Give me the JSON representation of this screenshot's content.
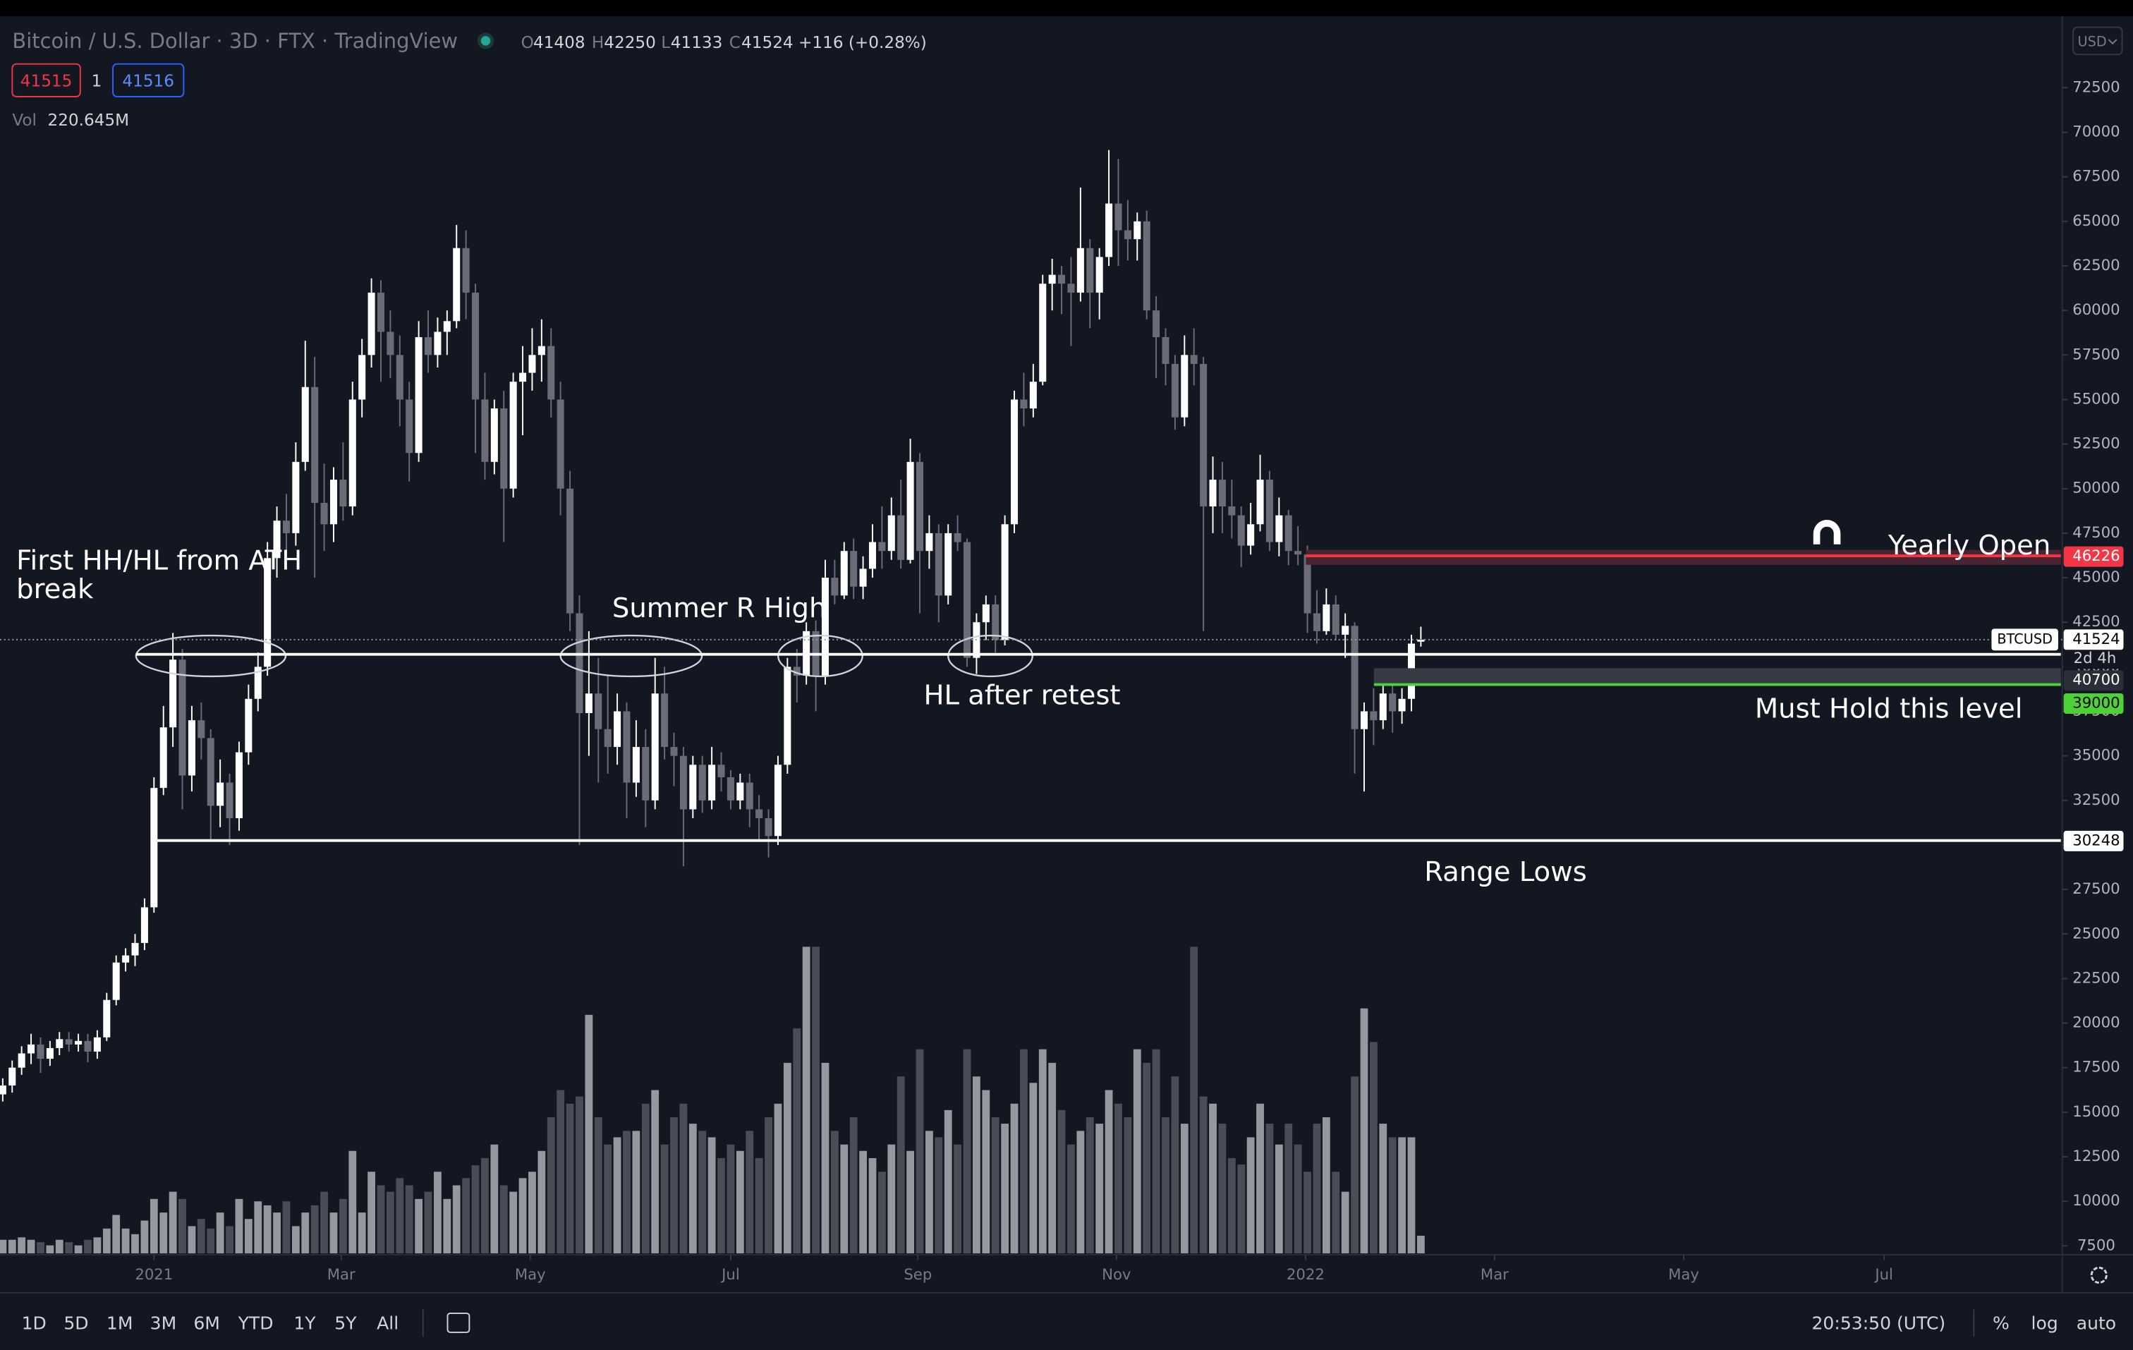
{
  "chart_data": {
    "type": "candlestick",
    "categories": [
      null,
      null,
      null,
      null,
      null,
      null,
      null,
      null,
      null,
      null,
      null,
      null,
      null,
      null,
      null,
      null,
      null,
      null,
      null,
      null,
      null,
      null,
      null,
      null,
      null,
      null,
      null,
      null,
      null,
      null,
      null,
      null,
      null,
      null,
      null,
      null,
      null,
      null,
      null,
      null,
      null,
      null,
      null,
      null,
      null,
      null,
      null,
      null,
      null,
      null,
      null,
      null,
      null,
      null,
      null,
      null,
      null,
      null,
      null,
      null,
      null,
      null,
      null,
      null,
      null,
      null,
      null,
      null,
      null,
      null,
      null,
      null,
      null,
      null,
      null,
      null,
      null,
      null,
      null,
      null,
      null,
      null,
      null,
      null,
      null,
      null,
      null,
      null,
      null,
      null,
      null,
      null,
      null,
      null,
      null,
      null,
      null,
      null,
      null,
      null,
      null,
      null,
      null,
      null,
      null,
      null,
      null,
      null,
      null,
      null,
      null,
      null,
      null,
      null,
      null,
      null,
      null,
      null,
      null,
      null,
      null,
      null,
      null,
      null,
      null,
      null,
      null,
      null,
      null,
      null,
      null,
      null,
      null,
      null,
      null,
      null,
      null,
      null,
      null,
      null,
      null,
      null,
      null,
      null,
      null,
      null,
      null,
      null,
      null,
      null,
      null
    ],
    "candles": [
      [
        16000,
        16900,
        15600,
        16500
      ],
      [
        16500,
        17900,
        16100,
        17500
      ],
      [
        17500,
        18700,
        17100,
        18300
      ],
      [
        18300,
        19400,
        17700,
        18800
      ],
      [
        18800,
        19200,
        17200,
        18000
      ],
      [
        18000,
        19000,
        17600,
        18600
      ],
      [
        18600,
        19500,
        18200,
        19100
      ],
      [
        19100,
        19500,
        18400,
        18800
      ],
      [
        18800,
        19400,
        18400,
        19000
      ],
      [
        19000,
        19400,
        17800,
        18400
      ],
      [
        18400,
        19600,
        18000,
        19200
      ],
      [
        19200,
        21700,
        19000,
        21300
      ],
      [
        21300,
        23800,
        21000,
        23400
      ],
      [
        23400,
        24200,
        22900,
        23800
      ],
      [
        23800,
        25000,
        23200,
        24500
      ],
      [
        24500,
        27000,
        24100,
        26500
      ],
      [
        26500,
        33800,
        26200,
        33200
      ],
      [
        33200,
        37800,
        32800,
        36600
      ],
      [
        36600,
        41900,
        35500,
        40400
      ],
      [
        40400,
        41000,
        32000,
        33900
      ],
      [
        33900,
        37800,
        33000,
        37000
      ],
      [
        37000,
        38000,
        34800,
        36000
      ],
      [
        36000,
        36500,
        30200,
        32200
      ],
      [
        32200,
        34800,
        31000,
        33500
      ],
      [
        33500,
        34000,
        30000,
        31500
      ],
      [
        31500,
        35800,
        30800,
        35200
      ],
      [
        35200,
        39000,
        34500,
        38200
      ],
      [
        38200,
        40800,
        37500,
        40000
      ],
      [
        40000,
        47000,
        39500,
        46100
      ],
      [
        46100,
        49000,
        45000,
        48200
      ],
      [
        48200,
        49700,
        46300,
        47500
      ],
      [
        47500,
        52600,
        46800,
        51500
      ],
      [
        51500,
        58300,
        51000,
        55700
      ],
      [
        55700,
        57400,
        45000,
        49200
      ],
      [
        49200,
        51400,
        46500,
        48000
      ],
      [
        48000,
        51200,
        47000,
        50500
      ],
      [
        50500,
        52600,
        48200,
        49000
      ],
      [
        49000,
        56000,
        48500,
        55000
      ],
      [
        55000,
        58400,
        54000,
        57500
      ],
      [
        57500,
        61800,
        56800,
        61000
      ],
      [
        61000,
        61700,
        56000,
        58800
      ],
      [
        58800,
        60000,
        56200,
        57500
      ],
      [
        57500,
        58600,
        53500,
        55000
      ],
      [
        55000,
        56000,
        50400,
        52000
      ],
      [
        52000,
        59400,
        51500,
        58500
      ],
      [
        58500,
        60000,
        56500,
        57500
      ],
      [
        57500,
        59600,
        56800,
        58800
      ],
      [
        58800,
        60000,
        57500,
        59400
      ],
      [
        59400,
        64800,
        59000,
        63500
      ],
      [
        63500,
        64500,
        59500,
        61000
      ],
      [
        61000,
        61500,
        52000,
        55000
      ],
      [
        55000,
        56500,
        50500,
        51500
      ],
      [
        51500,
        55000,
        50800,
        54500
      ],
      [
        54500,
        55500,
        47000,
        50000
      ],
      [
        50000,
        56500,
        49500,
        56000
      ],
      [
        56000,
        58000,
        53000,
        56500
      ],
      [
        56500,
        59000,
        55500,
        57500
      ],
      [
        57500,
        59500,
        56000,
        58000
      ],
      [
        58000,
        59000,
        54000,
        55000
      ],
      [
        55000,
        56000,
        48500,
        50000
      ],
      [
        50000,
        51000,
        42000,
        43000
      ],
      [
        43000,
        44000,
        30000,
        37400
      ],
      [
        37400,
        42000,
        35000,
        38500
      ],
      [
        38500,
        40500,
        33500,
        36500
      ],
      [
        36500,
        39500,
        34000,
        35500
      ],
      [
        35500,
        38500,
        34500,
        37500
      ],
      [
        37500,
        38000,
        31500,
        33500
      ],
      [
        33500,
        37000,
        32700,
        35500
      ],
      [
        35500,
        36500,
        31000,
        32500
      ],
      [
        32500,
        40500,
        32000,
        38500
      ],
      [
        38500,
        40000,
        34800,
        35500
      ],
      [
        35500,
        36300,
        33300,
        35000
      ],
      [
        35000,
        35500,
        28800,
        32000
      ],
      [
        32000,
        35000,
        31500,
        34500
      ],
      [
        34500,
        35000,
        31800,
        32500
      ],
      [
        32500,
        35500,
        32000,
        34500
      ],
      [
        34500,
        35200,
        33000,
        33800
      ],
      [
        33800,
        34200,
        32000,
        32500
      ],
      [
        32500,
        34000,
        32000,
        33500
      ],
      [
        33500,
        34000,
        31000,
        32000
      ],
      [
        32000,
        32800,
        30200,
        31500
      ],
      [
        31500,
        32000,
        29300,
        30500
      ],
      [
        30500,
        35000,
        30000,
        34500
      ],
      [
        34500,
        40500,
        34000,
        40000
      ],
      [
        40000,
        41000,
        38000,
        39500
      ],
      [
        39500,
        42500,
        39000,
        42000
      ],
      [
        42000,
        42600,
        37500,
        39500
      ],
      [
        39500,
        46000,
        39000,
        45000
      ],
      [
        45000,
        46000,
        43500,
        44000
      ],
      [
        44000,
        47000,
        43800,
        46500
      ],
      [
        46500,
        47200,
        43800,
        44500
      ],
      [
        44500,
        46200,
        43800,
        45500
      ],
      [
        45500,
        48000,
        45000,
        47000
      ],
      [
        47000,
        49000,
        45500,
        46500
      ],
      [
        46500,
        49500,
        46000,
        48500
      ],
      [
        48500,
        50500,
        45500,
        46000
      ],
      [
        46000,
        52800,
        45800,
        51500
      ],
      [
        51500,
        52000,
        43000,
        46500
      ],
      [
        46500,
        48500,
        45500,
        47500
      ],
      [
        47500,
        48000,
        42500,
        44000
      ],
      [
        44000,
        48000,
        43500,
        47500
      ],
      [
        47500,
        48500,
        46500,
        47000
      ],
      [
        47000,
        47200,
        40000,
        40500
      ],
      [
        40500,
        43000,
        39600,
        42500
      ],
      [
        42500,
        44000,
        41500,
        43500
      ],
      [
        43500,
        44000,
        40800,
        41500
      ],
      [
        41500,
        48500,
        41200,
        48000
      ],
      [
        48000,
        55500,
        47500,
        55000
      ],
      [
        55000,
        56500,
        53500,
        54500
      ],
      [
        54500,
        57000,
        54000,
        56000
      ],
      [
        56000,
        62000,
        55800,
        61500
      ],
      [
        61500,
        62900,
        60000,
        62000
      ],
      [
        62000,
        62500,
        59800,
        61500
      ],
      [
        61500,
        63000,
        58000,
        61000
      ],
      [
        61000,
        66900,
        60500,
        63500
      ],
      [
        63500,
        64000,
        59000,
        61000
      ],
      [
        61000,
        63500,
        59500,
        63000
      ],
      [
        63000,
        69000,
        62500,
        66000
      ],
      [
        66000,
        68500,
        62500,
        64500
      ],
      [
        64500,
        66200,
        62800,
        64000
      ],
      [
        64000,
        65500,
        62800,
        65000
      ],
      [
        65000,
        65600,
        59500,
        60000
      ],
      [
        60000,
        60800,
        56200,
        58500
      ],
      [
        58500,
        59000,
        55800,
        57000
      ],
      [
        57000,
        57500,
        53300,
        54000
      ],
      [
        54000,
        58600,
        53500,
        57500
      ],
      [
        57500,
        59000,
        55800,
        57000
      ],
      [
        57000,
        57400,
        42000,
        49000
      ],
      [
        49000,
        51800,
        47500,
        50500
      ],
      [
        50500,
        51500,
        47500,
        49000
      ],
      [
        49000,
        50500,
        47200,
        48500
      ],
      [
        48500,
        49000,
        45600,
        46800
      ],
      [
        46800,
        49200,
        46300,
        48000
      ],
      [
        48000,
        51900,
        47600,
        50500
      ],
      [
        50500,
        51000,
        46500,
        47000
      ],
      [
        47000,
        49500,
        46200,
        48500
      ],
      [
        48500,
        48800,
        45700,
        46500
      ],
      [
        46500,
        47900,
        45700,
        46300
      ],
      [
        46300,
        46800,
        41900,
        43000
      ],
      [
        43000,
        44300,
        41300,
        42000
      ],
      [
        42000,
        44400,
        41800,
        43500
      ],
      [
        43500,
        44000,
        41500,
        41800
      ],
      [
        41800,
        43000,
        40500,
        42300
      ],
      [
        42300,
        42500,
        34000,
        36500
      ],
      [
        36500,
        38000,
        33000,
        37500
      ],
      [
        37500,
        38800,
        35600,
        37000
      ],
      [
        37000,
        39200,
        36500,
        38500
      ],
      [
        38500,
        39000,
        36300,
        37500
      ],
      [
        37500,
        38800,
        36800,
        38200
      ],
      [
        38200,
        41800,
        37500,
        41300
      ],
      [
        41408,
        42250,
        41133,
        41524
      ]
    ],
    "volumes": [
      170,
      170,
      200,
      170,
      140,
      100,
      170,
      140,
      100,
      170,
      200,
      310,
      480,
      310,
      240,
      410,
      680,
      510,
      770,
      680,
      340,
      430,
      310,
      510,
      340,
      680,
      430,
      650,
      600,
      510,
      650,
      340,
      510,
      600,
      770,
      510,
      680,
      1280,
      510,
      1020,
      850,
      770,
      940,
      850,
      680,
      770,
      1020,
      680,
      850,
      940,
      1100,
      1190,
      1360,
      850,
      770,
      940,
      1020,
      1280,
      1700,
      2040,
      1870,
      1960,
      2980,
      1700,
      1360,
      1450,
      1530,
      1530,
      1870,
      2040,
      1360,
      1700,
      1870,
      1620,
      1530,
      1450,
      1190,
      1360,
      1280,
      1530,
      1190,
      1700,
      1870,
      2380,
      2810,
      3830,
      3830,
      2380,
      1530,
      1360,
      1700,
      1280,
      1190,
      1020,
      1360,
      2210,
      1280,
      2550,
      1530,
      1450,
      1790,
      1360,
      2550,
      2210,
      2040,
      1700,
      1620,
      1870,
      2550,
      2130,
      2550,
      2380,
      1790,
      1360,
      1530,
      1700,
      1620,
      2040,
      1870,
      1700,
      2550,
      2380,
      2550,
      1700,
      2210,
      1620,
      3830,
      1960,
      1870,
      1620,
      1190,
      1110,
      1450,
      1870,
      1620,
      1360,
      1620,
      1360,
      1020,
      1620,
      1700,
      1020,
      770,
      2210,
      3060,
      2640,
      1620,
      1450,
      1450,
      1450,
      220.645
    ],
    "volume_label": "220.645M",
    "up_color": "#ffffff",
    "down_color": "#6a6d78",
    "volume_up_color": "#9598a1",
    "volume_down_color": "#4a4d57",
    "ylim": [
      7000,
      76500
    ],
    "yticks": [
      7500,
      10000,
      12500,
      15000,
      17500,
      20000,
      22500,
      25000,
      27500,
      30000,
      32500,
      35000,
      37500,
      40000,
      42500,
      45000,
      47500,
      50000,
      52500,
      55000,
      57500,
      60000,
      62500,
      65000,
      67500,
      70000,
      72500
    ],
    "xticks": [
      {
        "value": 16,
        "label": "2021"
      },
      {
        "value": 35.8,
        "label": "Mar"
      },
      {
        "value": 55.8,
        "label": "May"
      },
      {
        "value": 77,
        "label": "Jul"
      },
      {
        "value": 96.8,
        "label": "Sep"
      },
      {
        "value": 117.8,
        "label": "Nov"
      },
      {
        "value": 137.8,
        "label": "2022"
      },
      {
        "value": 157.8,
        "label": "Mar"
      },
      {
        "value": 177.8,
        "label": "May"
      },
      {
        "value": 199,
        "label": "Jul"
      }
    ],
    "log_scale": false,
    "grid": false,
    "levels": [
      {
        "value": 46226,
        "color": "#f23645",
        "label_color": "#ffffff"
      },
      {
        "value": 40700,
        "color": "#ffffff",
        "label_color": "#ffffff"
      },
      {
        "value": 39000,
        "color": "#4cd137",
        "label_color": "#000000"
      },
      {
        "value": 30248,
        "color": "#ffffff",
        "label_color": "#000000"
      }
    ],
    "symbol": "BTCUSD",
    "countdown": "2d 4h",
    "annotations": [
      {
        "lines": [
          "First HH/HL from ATH",
          "break"
        ]
      },
      {
        "lines": [
          "Summer R High"
        ]
      },
      {
        "lines": [
          "HL after retest"
        ]
      },
      {
        "lines": [
          "Yearly Open"
        ]
      },
      {
        "lines": [
          "Must Hold this level"
        ]
      },
      {
        "lines": [
          "Range Lows"
        ]
      }
    ]
  },
  "ui": {
    "title": "Bitcoin / U.S. Dollar · 3D · FTX · TradingView",
    "ohlc_letters": [
      "O",
      "H",
      "L",
      "C"
    ],
    "change": "+116 (+0.28%)",
    "sell": "41515",
    "spread": "1",
    "buy": "41516",
    "vol": "Vol",
    "currency": "USD",
    "ranges": [
      "1D",
      "5D",
      "1M",
      "3M",
      "6M",
      "YTD",
      "1Y",
      "5Y",
      "All"
    ],
    "clock": "20:53:50 (UTC)",
    "percent": "%",
    "log": "log",
    "auto": "auto"
  }
}
